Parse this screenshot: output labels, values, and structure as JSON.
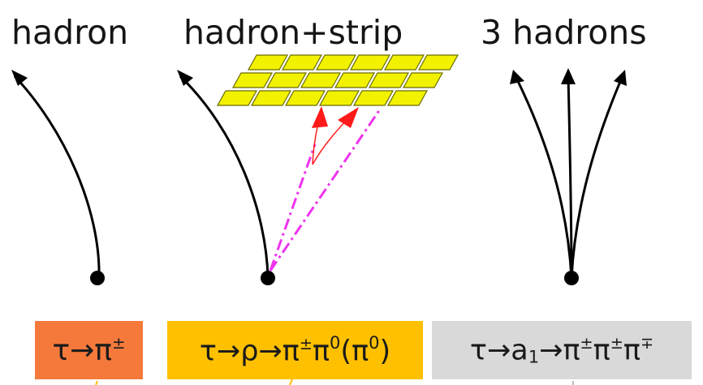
{
  "panels": [
    {
      "title": "hadron"
    },
    {
      "title": "hadron+strip"
    },
    {
      "title": "3 hadrons"
    }
  ],
  "decay_modes": [
    {
      "label": "τ→π±",
      "bg": "#f4793b"
    },
    {
      "label": "τ→ρ→π±π0(π0)",
      "bg": "#ffc000"
    },
    {
      "label": "τ→a1→π±π±π∓",
      "bg": "#d9d9d9"
    }
  ],
  "colors": {
    "track": "#000000",
    "strip_fill": "#f2f200",
    "strip_edge": "#6b6b00",
    "photon": "#ff1a1a",
    "neutral_pion": "#ee33ee"
  }
}
